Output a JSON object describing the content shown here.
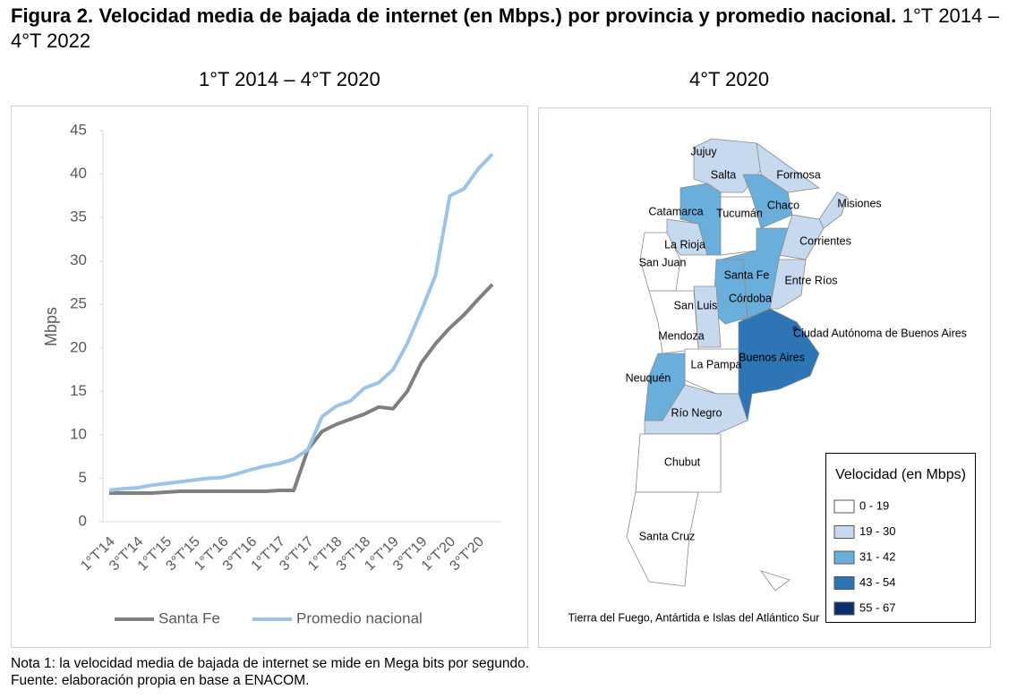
{
  "header": {
    "title_bold": "Figura 2. Velocidad media de bajada de internet (en Mbps.) por provincia y promedio nacional.",
    "title_rest": "1°T 2014 – 4°T 2022"
  },
  "chart_data": {
    "type": "line",
    "title": "1°T 2014 – 4°T 2020",
    "y_label": "Mbps",
    "categories": [
      "1°T'14",
      null,
      "3°T'14",
      null,
      "1°T'15",
      null,
      "3°T'15",
      null,
      "1°T'16",
      null,
      "3°T'16",
      null,
      "1°T'17",
      null,
      "3°T'17",
      null,
      "1°T'18",
      null,
      "3°T'18",
      null,
      "1°T'19",
      null,
      "3°T'19",
      null,
      "1°T'20",
      null,
      "3°T'20",
      null
    ],
    "series": [
      {
        "name": "Santa Fe",
        "color": "#7f7f7f",
        "values": [
          3.3,
          3.3,
          3.3,
          3.3,
          3.4,
          3.5,
          3.5,
          3.5,
          3.5,
          3.5,
          3.5,
          3.5,
          3.6,
          3.6,
          8.3,
          10.4,
          11.2,
          11.8,
          12.4,
          13.2,
          13.0,
          15.0,
          18.3,
          20.5,
          22.3,
          23.8,
          25.6,
          27.3
        ]
      },
      {
        "name": "Promedio nacional",
        "color": "#9dc3e6",
        "values": [
          3.6,
          3.8,
          3.9,
          4.2,
          4.4,
          4.6,
          4.8,
          5.0,
          5.1,
          5.5,
          6.0,
          6.4,
          6.7,
          7.2,
          8.3,
          12.1,
          13.3,
          13.9,
          15.4,
          16.0,
          17.5,
          20.5,
          24.3,
          28.4,
          37.5,
          38.3,
          40.6,
          42.3
        ]
      }
    ],
    "ylim": [
      0,
      45
    ],
    "yticks": [
      0,
      5,
      10,
      15,
      20,
      25,
      30,
      35,
      40,
      45
    ],
    "grid": false,
    "legend": "bottom"
  },
  "map": {
    "title": "4°T 2020",
    "provinces": [
      "Jujuy",
      "Salta",
      "Formosa",
      "Chaco",
      "Misiones",
      "Catamarca",
      "Tucumán",
      "Corrientes",
      "La Rioja",
      "San Juan",
      "Santa Fe",
      "Entre Ríos",
      "Córdoba",
      "San Luis",
      "Ciudad Autónoma de Buenos Aires",
      "Mendoza",
      "Buenos Aires",
      "La Pampa",
      "Neuquén",
      "Río Negro",
      "Chubut",
      "Santa Cruz",
      "Tierra del Fuego, Antártida e Islas del Atlántico Sur"
    ],
    "legend_title": "Velocidad (en Mbps)",
    "legend": [
      "0 - 19",
      "19 - 30",
      "31 - 42",
      "43 - 54",
      "55 - 67"
    ]
  },
  "notes": [
    "Nota 1: la velocidad media de bajada de internet se mide en Mega bits por segundo.",
    "Fuente: elaboración propia en base a ENACOM."
  ]
}
